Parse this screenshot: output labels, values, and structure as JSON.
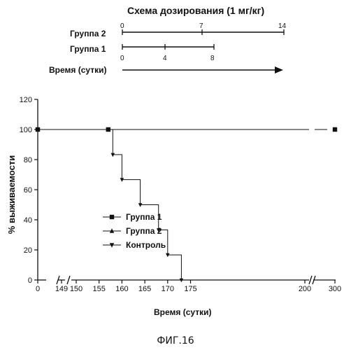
{
  "schedule": {
    "title": "Схема дозирования (1 мг/кг)",
    "group2_label": "Группа 2",
    "group1_label": "Группа 1",
    "time_label": "Время (сутки)",
    "group2_ticks": [
      "0",
      "7",
      "14"
    ],
    "group1_ticks": [
      "0",
      "4",
      "8"
    ]
  },
  "chart_data": {
    "type": "line",
    "ylabel": "% выживаемости",
    "xlabel": "Время (сутки)",
    "ylim": [
      0,
      120
    ],
    "y_ticks": [
      0,
      20,
      40,
      60,
      80,
      100,
      120
    ],
    "x_axis_segments": [
      {
        "range": [
          0,
          0
        ],
        "tick_labels": [
          "0"
        ]
      },
      {
        "range": [
          149,
          149
        ],
        "tick_labels": [
          "149"
        ]
      },
      {
        "range": [
          150,
          200
        ],
        "tick_labels": [
          "150",
          "155",
          "160",
          "165",
          "170",
          "175",
          "200"
        ]
      },
      {
        "range": [
          200,
          300
        ],
        "tick_labels": [
          "300"
        ]
      }
    ],
    "legend_position": "center-left",
    "series": [
      {
        "name": "Группа 1",
        "marker": "square",
        "points": [
          [
            0,
            100
          ],
          [
            157,
            100
          ],
          [
            300,
            100
          ]
        ]
      },
      {
        "name": "Группа 2",
        "marker": "triangle-up",
        "points": [
          [
            0,
            100
          ],
          [
            300,
            100
          ]
        ]
      },
      {
        "name": "Контроль",
        "marker": "triangle-down",
        "points": [
          [
            0,
            100
          ],
          [
            158,
            100
          ],
          [
            158,
            83.3
          ],
          [
            160,
            83.3
          ],
          [
            160,
            66.7
          ],
          [
            164,
            66.7
          ],
          [
            164,
            50
          ],
          [
            168,
            50
          ],
          [
            168,
            33.3
          ],
          [
            170,
            33.3
          ],
          [
            170,
            16.7
          ],
          [
            173,
            16.7
          ],
          [
            173,
            0
          ]
        ]
      }
    ]
  },
  "figure_label": "ФИГ.16"
}
